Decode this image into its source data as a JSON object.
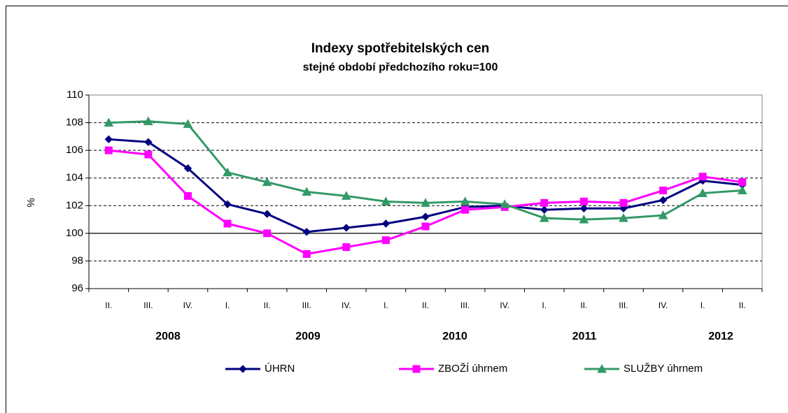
{
  "chart_data": {
    "type": "line",
    "title": "Indexy spotřebitelských  cen",
    "subtitle": "stejné období předchozího roku=100",
    "y_label": "%",
    "categories": [
      "II.",
      "III.",
      "IV.",
      "I.",
      "II.",
      "III.",
      "IV.",
      "I.",
      "II.",
      "III.",
      "IV.",
      "I.",
      "II.",
      "III.",
      "IV.",
      "I.",
      "II."
    ],
    "year_labels": [
      "2008",
      "2009",
      "2010",
      "2011",
      "2012"
    ],
    "series": [
      {
        "name": "ÚHRN",
        "color": "#000080",
        "marker": "diamond",
        "values": [
          106.8,
          106.6,
          104.7,
          102.1,
          101.4,
          100.1,
          100.4,
          100.7,
          101.2,
          101.9,
          102.0,
          101.7,
          101.8,
          101.8,
          102.4,
          103.8,
          103.5
        ]
      },
      {
        "name": "ZBOŽÍ úhrnem",
        "color": "#ff00ff",
        "marker": "square",
        "values": [
          106.0,
          105.7,
          102.7,
          100.7,
          100.0,
          98.5,
          99.0,
          99.5,
          100.5,
          101.7,
          101.9,
          102.2,
          102.3,
          102.2,
          103.1,
          104.1,
          103.7
        ]
      },
      {
        "name": "SLUŽBY úhrnem",
        "color": "#339966",
        "marker": "triangle",
        "values": [
          108.0,
          108.1,
          107.9,
          104.4,
          103.7,
          103.0,
          102.7,
          102.3,
          102.2,
          102.3,
          102.1,
          101.1,
          101.0,
          101.1,
          101.3,
          102.9,
          103.1
        ]
      }
    ],
    "ylim": [
      96,
      110
    ],
    "yticks": [
      96,
      98,
      100,
      102,
      104,
      106,
      108,
      110
    ],
    "grid": true
  }
}
